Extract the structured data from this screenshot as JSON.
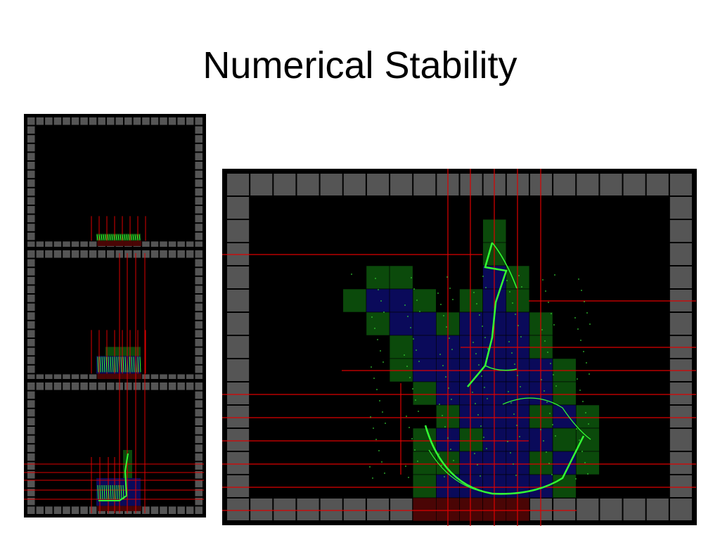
{
  "title": "Numerical Stability"
}
